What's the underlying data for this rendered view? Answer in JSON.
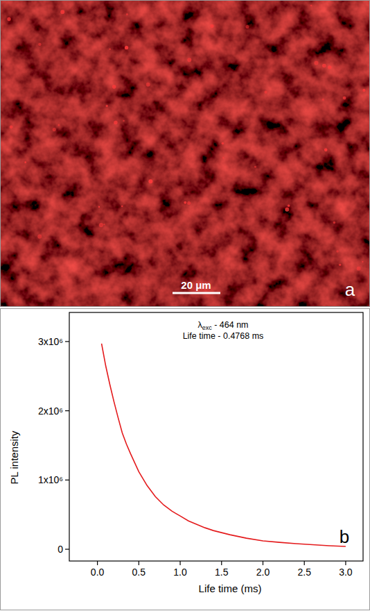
{
  "image_panel": {
    "panel_label": "a",
    "scale_bar": "20 μm"
  },
  "chart_data": {
    "type": "line",
    "panel_label": "b",
    "x_label": "Life time (ms)",
    "y_label": "PL intensity",
    "annotations": [
      {
        "text": "λ",
        "sub": "exc",
        "after": " - 464 nm"
      },
      {
        "text": "Life time - 0.4768 ms"
      }
    ],
    "x": [
      0.05,
      0.1,
      0.15,
      0.2,
      0.25,
      0.3,
      0.35,
      0.4,
      0.5,
      0.6,
      0.7,
      0.8,
      0.9,
      1.0,
      1.1,
      1.2,
      1.3,
      1.4,
      1.5,
      1.6,
      1.8,
      2.0,
      2.2,
      2.4,
      2.6,
      2.8,
      3.0
    ],
    "values": [
      2970000,
      2650000,
      2380000,
      2130000,
      1900000,
      1680000,
      1520000,
      1380000,
      1120000,
      920000,
      760000,
      640000,
      550000,
      480000,
      410000,
      360000,
      310000,
      270000,
      240000,
      210000,
      160000,
      120000,
      100000,
      80000,
      65000,
      50000,
      40000
    ],
    "color": "#e41a1c",
    "xlim": [
      -0.34,
      3.21
    ],
    "ylim": [
      -170000,
      3420000
    ],
    "xticks": [
      {
        "value": 0,
        "label": "0.0"
      },
      {
        "value": 0.5,
        "label": "0.5"
      },
      {
        "value": 1,
        "label": "1.0"
      },
      {
        "value": 1.5,
        "label": "1.5"
      },
      {
        "value": 2,
        "label": "2.0"
      },
      {
        "value": 2.5,
        "label": "2.5"
      },
      {
        "value": 3,
        "label": "3.0"
      }
    ],
    "yticks": [
      0,
      {
        "value": 1000000,
        "label": "1x10⁶"
      },
      {
        "value": 2000000,
        "label": "2x10⁶"
      },
      {
        "value": 3000000,
        "label": "3x10⁶"
      }
    ],
    "grid": false
  }
}
